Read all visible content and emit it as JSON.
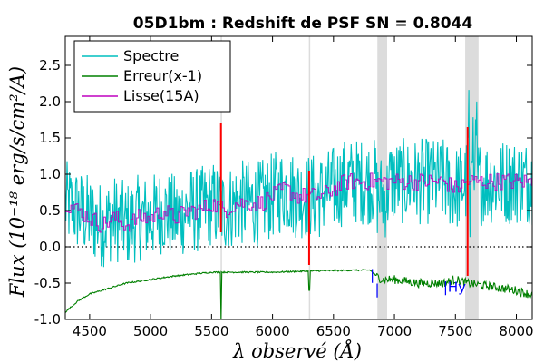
{
  "chart_data": {
    "type": "line",
    "title": "05D1bm : Redshift de PSF SN = 0.8044",
    "xlabel": "λ observé (Å)",
    "ylabel": "Flux (10⁻¹⁸ erg/s/cm²/A)",
    "xlim": [
      4300,
      8130
    ],
    "ylim": [
      -1.0,
      2.9
    ],
    "x_ticks": [
      "4500",
      "5000",
      "5500",
      "6000",
      "6500",
      "7000",
      "7500",
      "8000"
    ],
    "y_ticks": [
      "-1.0",
      "-0.5",
      "0.0",
      "0.5",
      "1.0",
      "1.5",
      "2.0",
      "2.5"
    ],
    "legend_position": "top-left",
    "zero_line": true,
    "series": [
      {
        "name": "Spectre",
        "color": "#00bfbf",
        "x": [
          4300,
          4400,
          4500,
          4600,
          4700,
          4800,
          4900,
          5000,
          5100,
          5200,
          5300,
          5400,
          5500,
          5600,
          5700,
          5800,
          5900,
          6000,
          6100,
          6200,
          6300,
          6400,
          6500,
          6600,
          6700,
          6800,
          6900,
          7000,
          7100,
          7200,
          7300,
          7400,
          7500,
          7600,
          7700,
          7800,
          7900,
          8000,
          8100
        ],
        "values": [
          0.6,
          0.5,
          0.4,
          0.3,
          0.4,
          0.3,
          0.4,
          0.4,
          0.5,
          0.4,
          0.5,
          0.5,
          0.6,
          0.5,
          0.6,
          0.6,
          0.6,
          0.7,
          0.8,
          0.7,
          0.7,
          0.7,
          0.8,
          0.9,
          0.9,
          0.9,
          0.9,
          0.9,
          0.9,
          0.9,
          0.9,
          0.9,
          0.8,
          0.9,
          0.9,
          0.9,
          0.9,
          0.9,
          0.9
        ],
        "scatter_amplitude": 0.6
      },
      {
        "name": "Erreur(x-1)",
        "color": "#008000",
        "x": [
          4300,
          4400,
          4500,
          4600,
          4800,
          5000,
          5200,
          5500,
          5600,
          6000,
          6400,
          6800,
          6850,
          6900,
          7000,
          7200,
          7400,
          7500,
          7600,
          7800,
          8000,
          8100
        ],
        "values": [
          -0.9,
          -0.75,
          -0.65,
          -0.6,
          -0.5,
          -0.45,
          -0.4,
          -0.35,
          -0.35,
          -0.35,
          -0.33,
          -0.32,
          -0.4,
          -0.45,
          -0.45,
          -0.5,
          -0.5,
          -0.45,
          -0.5,
          -0.55,
          -0.6,
          -0.65
        ]
      },
      {
        "name": "Lisse(15A)",
        "color": "#bf00bf",
        "x": [
          4300,
          4400,
          4500,
          4600,
          4700,
          4800,
          4900,
          5000,
          5100,
          5200,
          5300,
          5400,
          5500,
          5600,
          5700,
          5800,
          5900,
          6000,
          6100,
          6200,
          6300,
          6400,
          6500,
          6600,
          6700,
          6800,
          6900,
          7000,
          7100,
          7200,
          7300,
          7400,
          7500,
          7600,
          7700,
          7800,
          7900,
          8000,
          8100
        ],
        "values": [
          0.6,
          0.5,
          0.4,
          0.3,
          0.4,
          0.3,
          0.4,
          0.4,
          0.5,
          0.4,
          0.5,
          0.5,
          0.6,
          0.5,
          0.6,
          0.6,
          0.6,
          0.7,
          0.8,
          0.7,
          0.7,
          0.7,
          0.8,
          0.9,
          0.9,
          0.9,
          0.9,
          0.9,
          0.9,
          0.9,
          0.9,
          0.9,
          0.8,
          0.9,
          0.9,
          0.9,
          0.9,
          0.9,
          0.9
        ],
        "scatter_amplitude": 0.12
      }
    ],
    "gray_bands": [
      {
        "from": 5574,
        "to": 5580
      },
      {
        "from": 6298,
        "to": 6304
      },
      {
        "from": 6860,
        "to": 6940
      },
      {
        "from": 7580,
        "to": 7690
      }
    ],
    "red_spikes": [
      {
        "x": 5577,
        "top": 1.7,
        "bottom": 0.2
      },
      {
        "x": 6300,
        "top": 1.05,
        "bottom": -0.25
      },
      {
        "x": 7600,
        "top": 1.65,
        "bottom": -0.4
      }
    ],
    "annotations": [
      {
        "text": "|",
        "x": 6800,
        "y": -0.45
      },
      {
        "text": "|",
        "x": 6840,
        "y": -0.65
      },
      {
        "text": "|Hy",
        "x": 7400,
        "y": -0.62
      }
    ]
  }
}
